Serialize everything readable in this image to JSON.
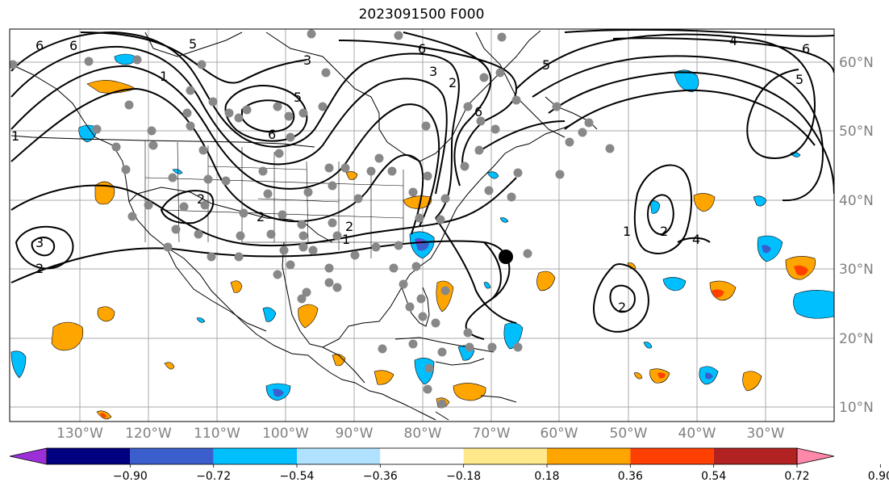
{
  "title": "2023091500 F000",
  "map": {
    "lon_labels": [
      "130°W",
      "120°W",
      "110°W",
      "100°W",
      "90°W",
      "80°W",
      "70°W",
      "60°W",
      "50°W",
      "40°W",
      "30°W"
    ],
    "lat_labels": [
      "60°N",
      "50°N",
      "40°N",
      "30°N",
      "20°N",
      "10°N"
    ],
    "contour_labels": [
      "6",
      "5",
      "3",
      "1",
      "5",
      "6",
      "3",
      "2",
      "6",
      "6",
      "5",
      "4",
      "6",
      "5",
      "1",
      "4",
      "2",
      "2",
      "1",
      "1",
      "2",
      "2",
      "2",
      "3",
      "2",
      "6"
    ],
    "marker": "large-black-dot"
  },
  "colorbar": {
    "ticks": [
      "−0.90",
      "−0.72",
      "−0.54",
      "−0.36",
      "−0.18",
      "0.18",
      "0.36",
      "0.54",
      "0.72",
      "0.90"
    ],
    "colors": [
      "#9b30d9",
      "#000080",
      "#3a5fcd",
      "#00bfff",
      "#b0e2ff",
      "#ffffff",
      "#ffe98a",
      "#ffa500",
      "#ff4000",
      "#b22222",
      "#ff88aa"
    ]
  },
  "colors": {
    "gray_dot": "#888888",
    "grid": "#a9a9a9",
    "tick_label": "#808080"
  }
}
